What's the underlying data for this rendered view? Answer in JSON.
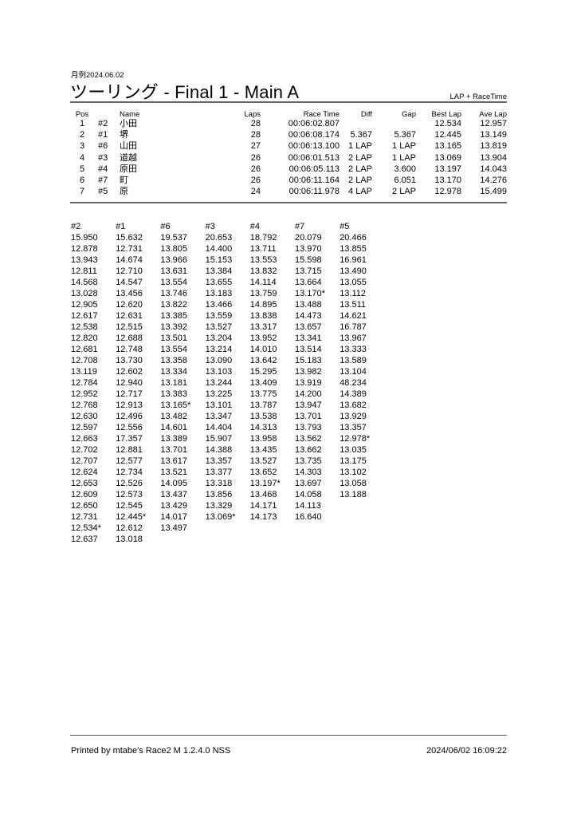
{
  "header": {
    "date": "月例2024.06.02",
    "title": "ツーリング  -  Final 1  -  Main A",
    "subtitle": "LAP + RaceTime"
  },
  "results": {
    "columns": [
      "Pos",
      "",
      "Name",
      "Laps",
      "Race Time",
      "Diff",
      "Gap",
      "Best Lap",
      "Ave Lap"
    ],
    "rows": [
      [
        "1",
        "#2",
        "小田",
        "28",
        "00:06:02.807",
        "",
        "",
        "12.534",
        "12.957"
      ],
      [
        "2",
        "#1",
        "堺",
        "28",
        "00:06:08.174",
        "5.367",
        "5.367",
        "12.445",
        "13.149"
      ],
      [
        "3",
        "#6",
        "山田",
        "27",
        "00:06:13.100",
        "1 LAP",
        "1 LAP",
        "13.165",
        "13.819"
      ],
      [
        "4",
        "#3",
        "道越",
        "26",
        "00:06:01.513",
        "2 LAP",
        "1 LAP",
        "13.069",
        "13.904"
      ],
      [
        "5",
        "#4",
        "原田",
        "26",
        "00:06:05.113",
        "2 LAP",
        "3.600",
        "13.197",
        "14.043"
      ],
      [
        "6",
        "#7",
        "町",
        "26",
        "00:06:11.164",
        "2 LAP",
        "6.051",
        "13.170",
        "14.276"
      ],
      [
        "7",
        "#5",
        "原",
        "24",
        "00:06:11.978",
        "4 LAP",
        "2 LAP",
        "12.978",
        "15.499"
      ]
    ]
  },
  "laps": {
    "columns": [
      {
        "car": "#2",
        "times": [
          "15.950",
          "12.878",
          "13.943",
          "12.811",
          "14.568",
          "13.028",
          "12.905",
          "12.617",
          "12.538",
          "12.820",
          "12.681",
          "12.708",
          "13.119",
          "12.784",
          "12.952",
          "12.768",
          "12.630",
          "12.597",
          "12.663",
          "12.702",
          "12.707",
          "12.624",
          "12.653",
          "12.609",
          "12.650",
          "12.731",
          "12.534*",
          "12.637"
        ]
      },
      {
        "car": "#1",
        "times": [
          "15.632",
          "12.731",
          "14.674",
          "12.710",
          "14.547",
          "13.456",
          "12.620",
          "12.631",
          "12.515",
          "12.688",
          "12.748",
          "13.730",
          "12.602",
          "12.940",
          "12.717",
          "12.913",
          "12.496",
          "12.556",
          "17.357",
          "12.881",
          "12.577",
          "12.734",
          "12.526",
          "12.573",
          "12.545",
          "12.445*",
          "12.612",
          "13.018"
        ]
      },
      {
        "car": "#6",
        "times": [
          "19.537",
          "13.805",
          "13.966",
          "13.631",
          "13.554",
          "13.746",
          "13.822",
          "13.385",
          "13.392",
          "13.501",
          "13.554",
          "13.358",
          "13.334",
          "13.181",
          "13.383",
          "13.165*",
          "13.482",
          "14.601",
          "13.389",
          "13.701",
          "13.617",
          "13.521",
          "14.095",
          "13.437",
          "13.429",
          "14.017",
          "13.497"
        ]
      },
      {
        "car": "#3",
        "times": [
          "20.653",
          "14.400",
          "15.153",
          "13.384",
          "13.655",
          "13.183",
          "13.466",
          "13.559",
          "13.527",
          "13.204",
          "13.214",
          "13.090",
          "13.103",
          "13.244",
          "13.225",
          "13.101",
          "13.347",
          "14.404",
          "15.907",
          "14.388",
          "13.357",
          "13.377",
          "13.318",
          "13.856",
          "13.329",
          "13.069*"
        ]
      },
      {
        "car": "#4",
        "times": [
          "18.792",
          "13.711",
          "13.553",
          "13.832",
          "14.114",
          "13.759",
          "14.895",
          "13.838",
          "13.317",
          "13.952",
          "14.010",
          "13.642",
          "15.295",
          "13.409",
          "13.775",
          "13.787",
          "13.538",
          "14.313",
          "13.958",
          "13.435",
          "13.527",
          "13.652",
          "13.197*",
          "13.468",
          "14.171",
          "14.173"
        ]
      },
      {
        "car": "#7",
        "times": [
          "20.079",
          "13.970",
          "15.598",
          "13.715",
          "13.664",
          "13.170*",
          "13.488",
          "14.473",
          "13.657",
          "13.341",
          "13.514",
          "15.183",
          "13.982",
          "13.919",
          "14.200",
          "13.947",
          "13.701",
          "13.793",
          "13.562",
          "13.662",
          "13.735",
          "14.303",
          "13.697",
          "14.058",
          "14.113",
          "16.640"
        ]
      },
      {
        "car": "#5",
        "times": [
          "20.466",
          "13.855",
          "16.961",
          "13.490",
          "13.055",
          "13.112",
          "13.511",
          "14.621",
          "16.787",
          "13.967",
          "13.333",
          "13.589",
          "13.104",
          "48.234",
          "14.389",
          "13.682",
          "13.929",
          "13.357",
          "12.978*",
          "13.035",
          "13.175",
          "13.102",
          "13.058",
          "13.188"
        ]
      }
    ]
  },
  "footer": {
    "printed_by": "Printed by mtabe's Race2 M  1.2.4.0  NSS",
    "timestamp": "2024/06/02 16:09:22"
  }
}
